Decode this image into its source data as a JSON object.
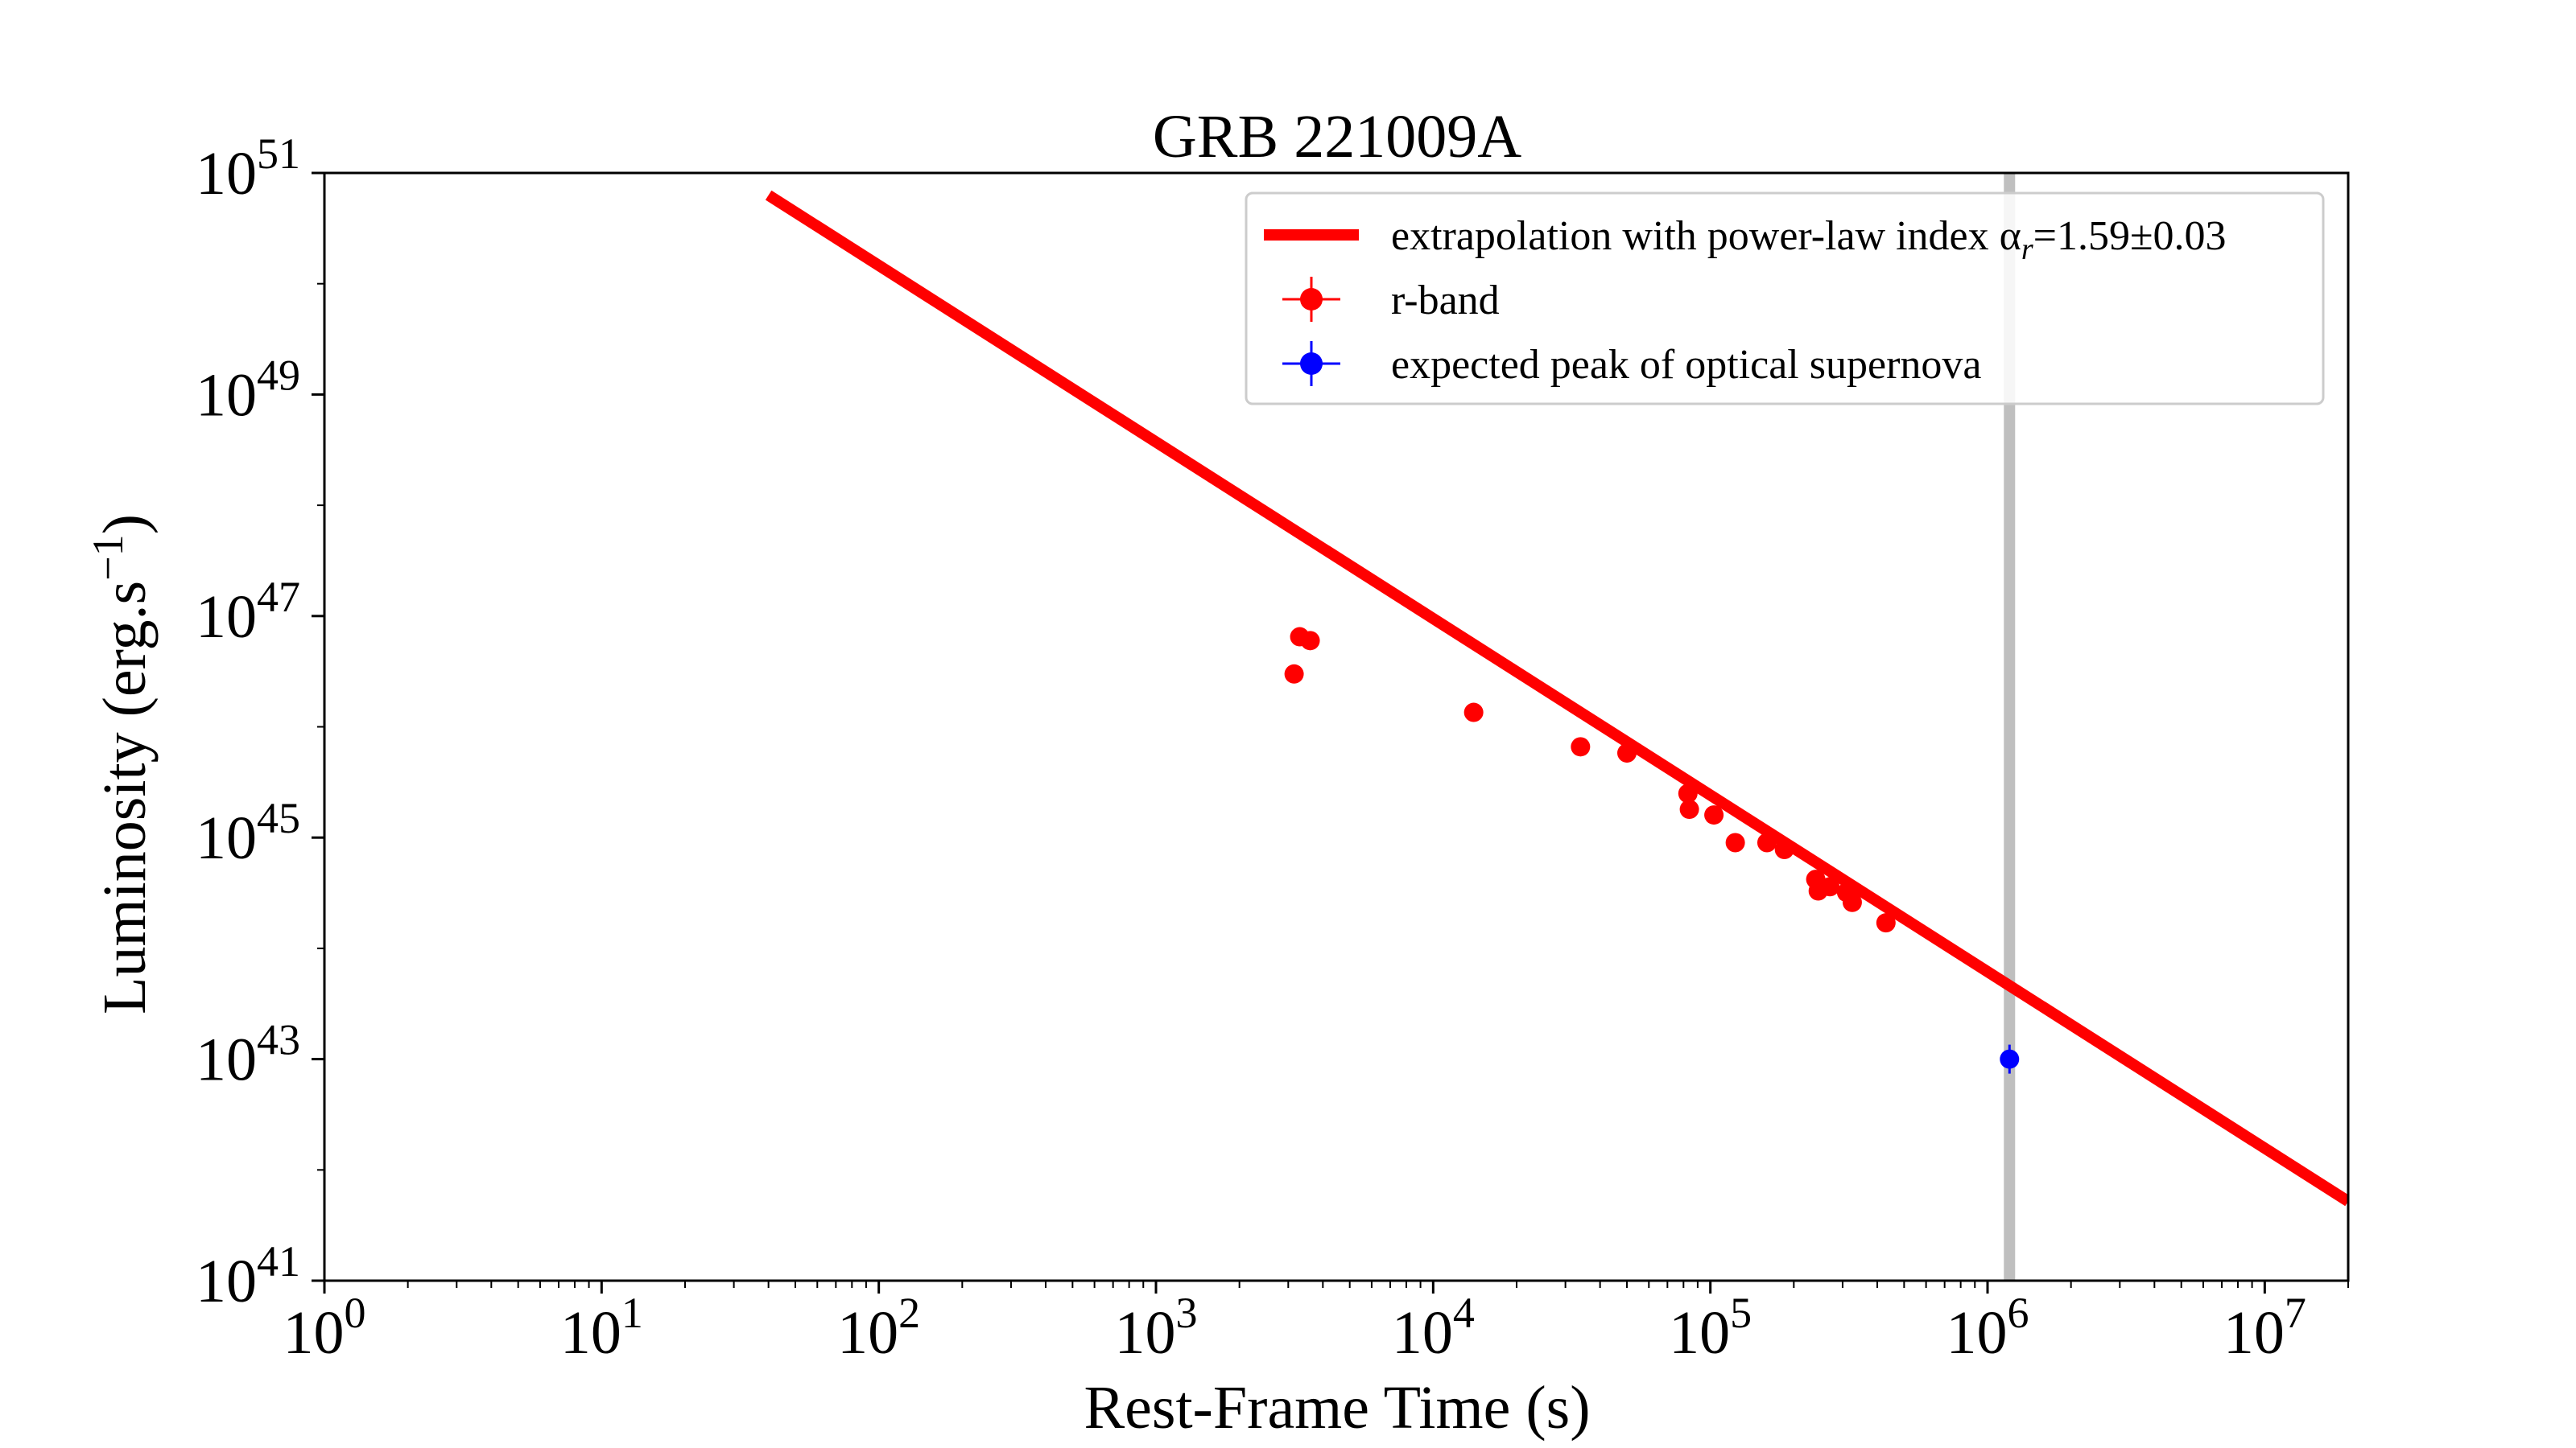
{
  "chart_data": {
    "type": "scatter",
    "title": "GRB 221009A",
    "xlabel": "Rest-Frame Time (s)",
    "ylabel": "Luminosity (erg.s",
    "ylabel_sup": "−1",
    "ylabel_close": ")",
    "xscale": "log",
    "yscale": "log",
    "xlim": [
      1,
      20000000
    ],
    "ylim": [
      1e+41,
      1e+51
    ],
    "x_ticks": [
      {
        "value": 1,
        "base": "10",
        "exp": "0"
      },
      {
        "value": 10,
        "base": "10",
        "exp": "1"
      },
      {
        "value": 100,
        "base": "10",
        "exp": "2"
      },
      {
        "value": 1000,
        "base": "10",
        "exp": "3"
      },
      {
        "value": 10000,
        "base": "10",
        "exp": "4"
      },
      {
        "value": 100000,
        "base": "10",
        "exp": "5"
      },
      {
        "value": 1000000,
        "base": "10",
        "exp": "6"
      },
      {
        "value": 10000000,
        "base": "10",
        "exp": "7"
      }
    ],
    "y_ticks": [
      {
        "value": 1e+41,
        "base": "10",
        "exp": "41"
      },
      {
        "value": 1e+43,
        "base": "10",
        "exp": "43"
      },
      {
        "value": 1e+45,
        "base": "10",
        "exp": "45"
      },
      {
        "value": 1e+47,
        "base": "10",
        "exp": "47"
      },
      {
        "value": 1e+49,
        "base": "10",
        "exp": "49"
      },
      {
        "value": 1e+51,
        "base": "10",
        "exp": "51"
      }
    ],
    "legend_position": "upper right",
    "legend": [
      {
        "kind": "line",
        "color": "#ff0000",
        "label_main": "extrapolation with power-law index α",
        "label_sub": "r",
        "label_rest": "=1.59±0.03"
      },
      {
        "kind": "errorbar",
        "color": "#ff0000",
        "label_main": "r-band",
        "label_sub": "",
        "label_rest": ""
      },
      {
        "kind": "errorbar",
        "color": "#0000ff",
        "label_main": "expected peak of optical supernova",
        "label_sub": "",
        "label_rest": ""
      }
    ],
    "series": [
      {
        "name": "extrapolation with power-law index αr=1.59±0.03",
        "kind": "line",
        "color": "#ff0000",
        "x": [
          40,
          20000000
        ],
        "y": [
          6.3e+50,
          5.2e+41
        ]
      },
      {
        "name": "r-band",
        "kind": "scatter",
        "color": "#ff0000",
        "x": [
          3150,
          3300,
          3600,
          14000,
          34000,
          50000,
          83000,
          84000,
          103000,
          123000,
          160000,
          185000,
          240000,
          245000,
          270000,
          310000,
          325000,
          430000
        ],
        "y": [
          3e+46,
          6.5e+46,
          6e+46,
          1.35e+46,
          6.6e+45,
          5.8e+45,
          2.5e+45,
          1.8e+45,
          1.6e+45,
          9e+44,
          9e+44,
          7.8e+44,
          4.2e+44,
          3.3e+44,
          3.6e+44,
          3.2e+44,
          2.6e+44,
          1.7e+44
        ]
      },
      {
        "name": "expected peak of optical supernova",
        "kind": "scatter",
        "color": "#0000ff",
        "x": [
          1200000
        ],
        "y": [
          1e+43
        ]
      }
    ],
    "vertical_band": {
      "x": 1200000,
      "color": "#bfbfbf"
    }
  }
}
